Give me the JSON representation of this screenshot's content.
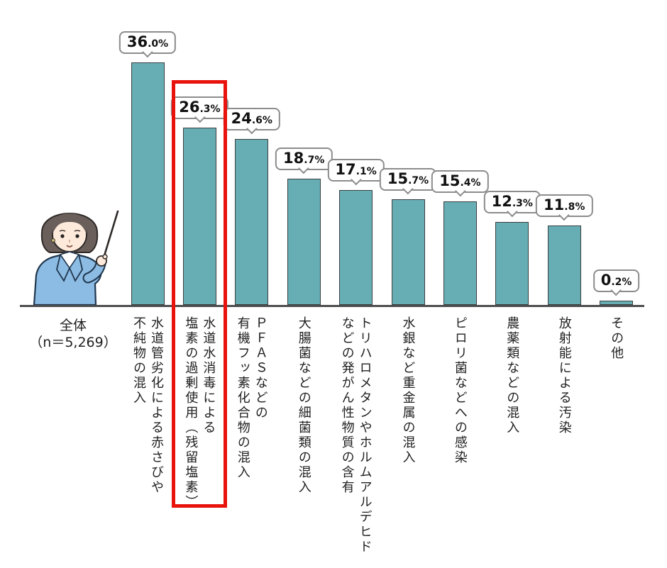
{
  "chart_data": {
    "type": "bar",
    "title": "",
    "group_label": {
      "line1": "全体",
      "line2": "（n＝5,269）"
    },
    "categories": [
      "水道管劣化による赤さびや\n不純物の混入",
      "水道水消毒による\n塩素の過剰使用（残留塩素）",
      "ＰＦＡＳなどの\n有機フッ素化合物の混入",
      "大腸菌などの細菌類の混入",
      "トリハロメタンやホルムアルデヒド\nなどの発がん性物質の含有",
      "水銀など重金属の混入",
      "ピロリ菌などへの感染",
      "農薬類などの混入",
      "放射能による汚染",
      "その他"
    ],
    "values": [
      36.0,
      26.3,
      24.6,
      18.7,
      17.1,
      15.7,
      15.4,
      12.3,
      11.8,
      0.2
    ],
    "value_labels": [
      "36.0%",
      "26.3%",
      "24.6%",
      "18.7%",
      "17.1%",
      "15.7%",
      "15.4%",
      "12.3%",
      "11.8%",
      "0.2%"
    ],
    "unit": "%",
    "highlight_index": 1,
    "xlabel": "",
    "ylabel": "",
    "ylim": [
      0,
      40
    ],
    "grid": false,
    "legend_position": "none",
    "colors": {
      "bar_fill": "#67aeb4",
      "bar_border": "#3a3f40",
      "axis": "#4d4d4d",
      "bubble_border": "#8c8c8c",
      "bubble_text": "#111111",
      "highlight_border": "#e8130c"
    }
  },
  "illustration": {
    "name": "presenter-woman-pointing"
  }
}
